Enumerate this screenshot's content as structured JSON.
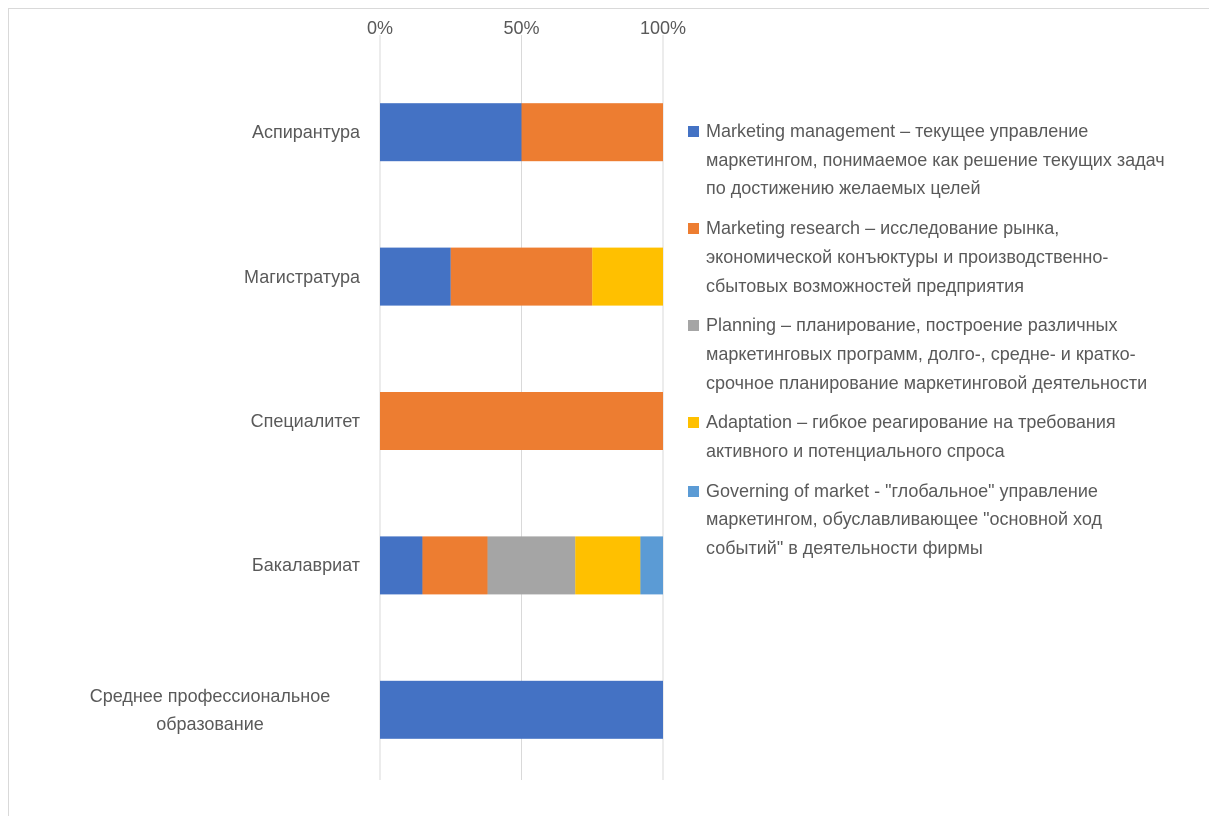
{
  "chart_data": {
    "type": "stacked_barh",
    "categories": [
      "Аспирантура",
      "Магистратура",
      "Специалитет",
      "Бакалавриат",
      "Среднее профессиональное образование"
    ],
    "series": [
      {
        "name": "Marketing management – текущее управление маркетингом, понимаемое как решение текущих задач по достижению желаемых целей",
        "color": "#4472c4",
        "values": [
          50,
          25,
          0,
          15,
          100
        ]
      },
      {
        "name": "Marketing research – исследование рынка, экономической конъюктуры и производственно-сбытовых возможностей предприятия",
        "color": "#ed7d31",
        "values": [
          50,
          50,
          100,
          23,
          0
        ]
      },
      {
        "name": "Planning – планирование, построение различных маркетинговых программ, долго-, средне- и кратко- срочное планирование маркетинговой деятельности",
        "color": "#a5a5a5",
        "values": [
          0,
          0,
          0,
          31,
          0
        ]
      },
      {
        "name": "Adaptation – гибкое реагирование на требования активного и потенциального спроса",
        "color": "#ffc000",
        "values": [
          0,
          25,
          0,
          23,
          0
        ]
      },
      {
        "name": "Governing of market - \"глобальное\" управление маркетингом, обуславливающее \"основной ход событий\" в деятельности фирмы",
        "color": "#5b9bd5",
        "values": [
          0,
          0,
          0,
          8,
          0
        ]
      }
    ],
    "xlim": [
      0,
      100
    ],
    "xticks": [
      {
        "value": 0,
        "label": "0%"
      },
      {
        "value": 50,
        "label": "50%"
      },
      {
        "value": 100,
        "label": "100%"
      }
    ],
    "grid": true,
    "legend": "right"
  }
}
